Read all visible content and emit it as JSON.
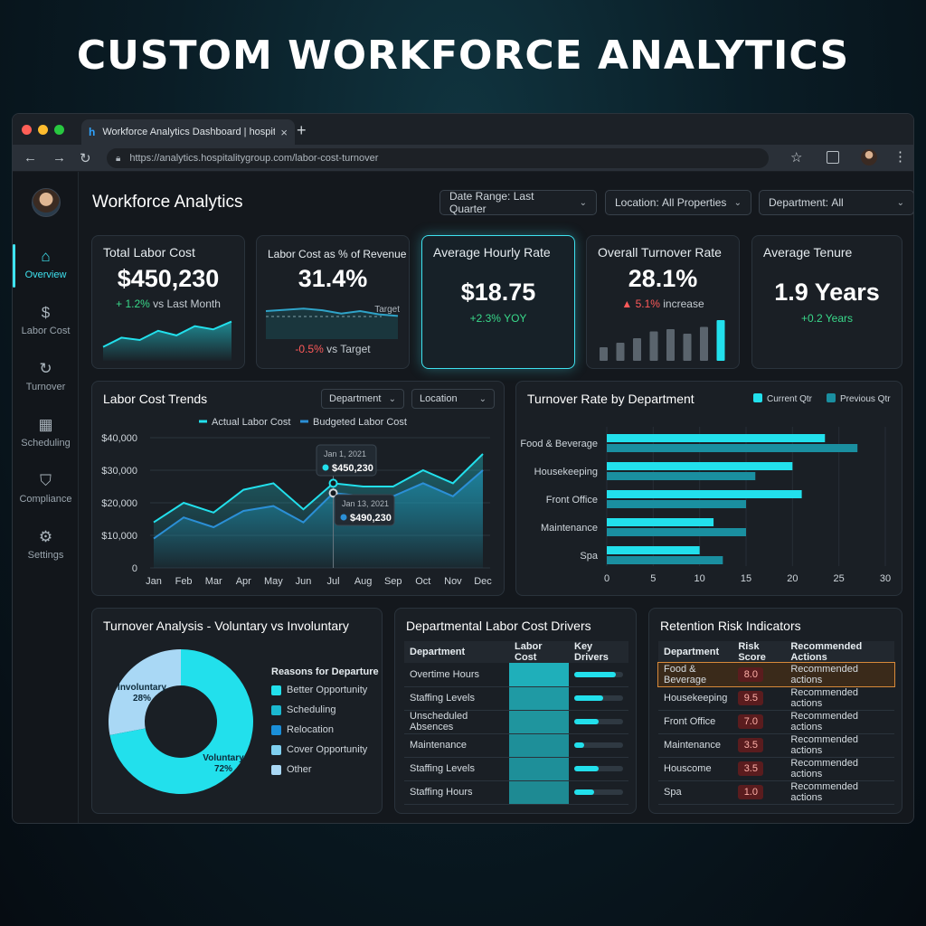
{
  "hero_title": "CUSTOM WORKFORCE ANALYTICS",
  "browser": {
    "tab_title": "Workforce Analytics Dashboard | hospitality",
    "tab_favicon": "h",
    "new_tab": "+",
    "close": "×",
    "url": "https://analytics.hospitalitygroup.com/labor-cost-turnover"
  },
  "sidebar": {
    "items": [
      {
        "label": "Overview",
        "icon": "home-icon",
        "glyph": "⌂",
        "active": true
      },
      {
        "label": "Labor Cost",
        "icon": "coins-icon",
        "glyph": "$",
        "active": false
      },
      {
        "label": "Turnover",
        "icon": "refresh-icon",
        "glyph": "↻",
        "active": false
      },
      {
        "label": "Scheduling",
        "icon": "calendar-icon",
        "glyph": "▦",
        "active": false
      },
      {
        "label": "Compliance",
        "icon": "shield-icon",
        "glyph": "⛉",
        "active": false
      },
      {
        "label": "Settings",
        "icon": "gear-icon",
        "glyph": "⚙",
        "active": false
      }
    ]
  },
  "header": {
    "title": "Workforce Analytics",
    "filters": [
      {
        "label": "Date Range:",
        "value": "Last Quarter"
      },
      {
        "label": "Location:",
        "value": "All Properties"
      },
      {
        "label": "Department:",
        "value": "All"
      }
    ]
  },
  "kpis": {
    "labor_cost": {
      "title": "Total Labor Cost",
      "value": "$450,230",
      "delta": "+ 1.2%",
      "delta_note": "vs Last Month",
      "spark": [
        3,
        5,
        4.5,
        6.5,
        5.5,
        7.5,
        6.8,
        8.5
      ]
    },
    "pct_revenue": {
      "title": "Labor Cost as % of Revenue",
      "value": "31.4%",
      "target_label": "Target",
      "delta": "-0.5%",
      "delta_note": "vs Target",
      "spark": [
        6,
        6.3,
        6.6,
        6.2,
        5.4,
        6,
        5.2,
        4.8
      ]
    },
    "hourly": {
      "title": "Average Hourly Rate",
      "value": "$18.75",
      "delta": "+2.3%",
      "delta_note": "YOY"
    },
    "turnover": {
      "title": "Overall Turnover Rate",
      "value": "28.1%",
      "delta": "▲ 5.1%",
      "delta_note": "increase",
      "bars": [
        3,
        4,
        5,
        6.5,
        7,
        6,
        7.5,
        9
      ]
    },
    "tenure": {
      "title": "Average Tenure",
      "value": "1.9 Years",
      "delta": "+0.2 Years"
    }
  },
  "labor_trends": {
    "title": "Labor Cost Trends",
    "selects": [
      "Department",
      "Location"
    ],
    "tooltips": [
      {
        "date": "Jan 1, 2021",
        "value": "$450,230"
      },
      {
        "date": "Jan 13, 2021",
        "value": "$490,230"
      }
    ]
  },
  "turnover_dept": {
    "title": "Turnover Rate by Department"
  },
  "turnover_analysis": {
    "title": "Turnover Analysis - Voluntary vs Involuntary",
    "legend_title": "Reasons for Departure",
    "reasons": [
      {
        "label": "Better Opportunity",
        "color": "#22e0ec"
      },
      {
        "label": "Scheduling",
        "color": "#1bb8d0"
      },
      {
        "label": "Relocation",
        "color": "#1a8fd8"
      },
      {
        "label": "Cover Opportunity",
        "color": "#7fd0f0"
      },
      {
        "label": "Other",
        "color": "#a9d8f5"
      }
    ]
  },
  "drivers": {
    "title": "Departmental Labor Cost Drivers",
    "headers": [
      "Department",
      "Labor Cost",
      "Key Drivers"
    ],
    "rows": [
      {
        "department": "Overtime Hours",
        "cost": 1.0,
        "driver": 0.85
      },
      {
        "department": "Staffing Levels",
        "cost": 0.8,
        "driver": 0.6
      },
      {
        "department": "Unscheduled Absences",
        "cost": 0.75,
        "driver": 0.5
      },
      {
        "department": "Maintenance",
        "cost": 0.7,
        "driver": 0.2
      },
      {
        "department": "Staffing Levels",
        "cost": 0.7,
        "driver": 0.5
      },
      {
        "department": "Staffing Hours",
        "cost": 0.65,
        "driver": 0.4
      }
    ]
  },
  "retention": {
    "title": "Retention Risk Indicators",
    "headers": [
      "Department",
      "Risk Score",
      "Recommended Actions"
    ],
    "rows": [
      {
        "department": "Food & Beverage",
        "score": "8.0",
        "action": "Recommended actions"
      },
      {
        "department": "Housekeeping",
        "score": "9.5",
        "action": "Recommended actions"
      },
      {
        "department": "Front Office",
        "score": "7.0",
        "action": "Recommended actions"
      },
      {
        "department": "Maintenance",
        "score": "3.5",
        "action": "Recommended actions"
      },
      {
        "department": "Houscome",
        "score": "3.5",
        "action": "Recommended actions"
      },
      {
        "department": "Spa",
        "score": "1.0",
        "action": "Recommended actions"
      }
    ]
  },
  "colors": {
    "accent": "#22e0ec",
    "accent_dark": "#1a8fa8",
    "positive": "#39d98a",
    "negative": "#ff5a5a"
  },
  "chart_data": [
    {
      "type": "line",
      "categories": [
        "Jan",
        "Feb",
        "Mar",
        "Apr",
        "May",
        "Jun",
        "Jul",
        "Aug",
        "Sep",
        "Oct",
        "Nov",
        "Dec"
      ],
      "series": [
        {
          "name": "Actual Labor Cost",
          "values": [
            14000,
            20000,
            17000,
            24000,
            26000,
            18000,
            26000,
            25000,
            25000,
            30000,
            26000,
            35000
          ]
        },
        {
          "name": "Budgeted Labor Cost",
          "values": [
            9000,
            15500,
            12500,
            17500,
            19000,
            14000,
            23000,
            22000,
            22000,
            26000,
            22000,
            30000
          ]
        }
      ],
      "yticks": [
        "0",
        "$10,000",
        "$20,000",
        "$30,000",
        "$40,000"
      ],
      "ylim": [
        0,
        40000
      ]
    },
    {
      "type": "bar",
      "orientation": "horizontal",
      "categories": [
        "Food & Beverage",
        "Housekeeping",
        "Front Office",
        "Maintenance",
        "Spa"
      ],
      "series": [
        {
          "name": "Current Qtr",
          "values": [
            23.5,
            20,
            21,
            11.5,
            10
          ]
        },
        {
          "name": "Previous Qtr",
          "values": [
            27,
            16,
            15,
            15,
            12.5
          ]
        }
      ],
      "xticks": [
        "0",
        "5",
        "10",
        "15",
        "20",
        "25",
        "30"
      ],
      "xlim": [
        0,
        30
      ]
    },
    {
      "type": "pie",
      "donut": true,
      "slices": [
        {
          "label": "Involuntary",
          "value": 28,
          "display": "28%"
        },
        {
          "label": "Voluntary",
          "value": 72,
          "display": "72%"
        }
      ]
    }
  ]
}
